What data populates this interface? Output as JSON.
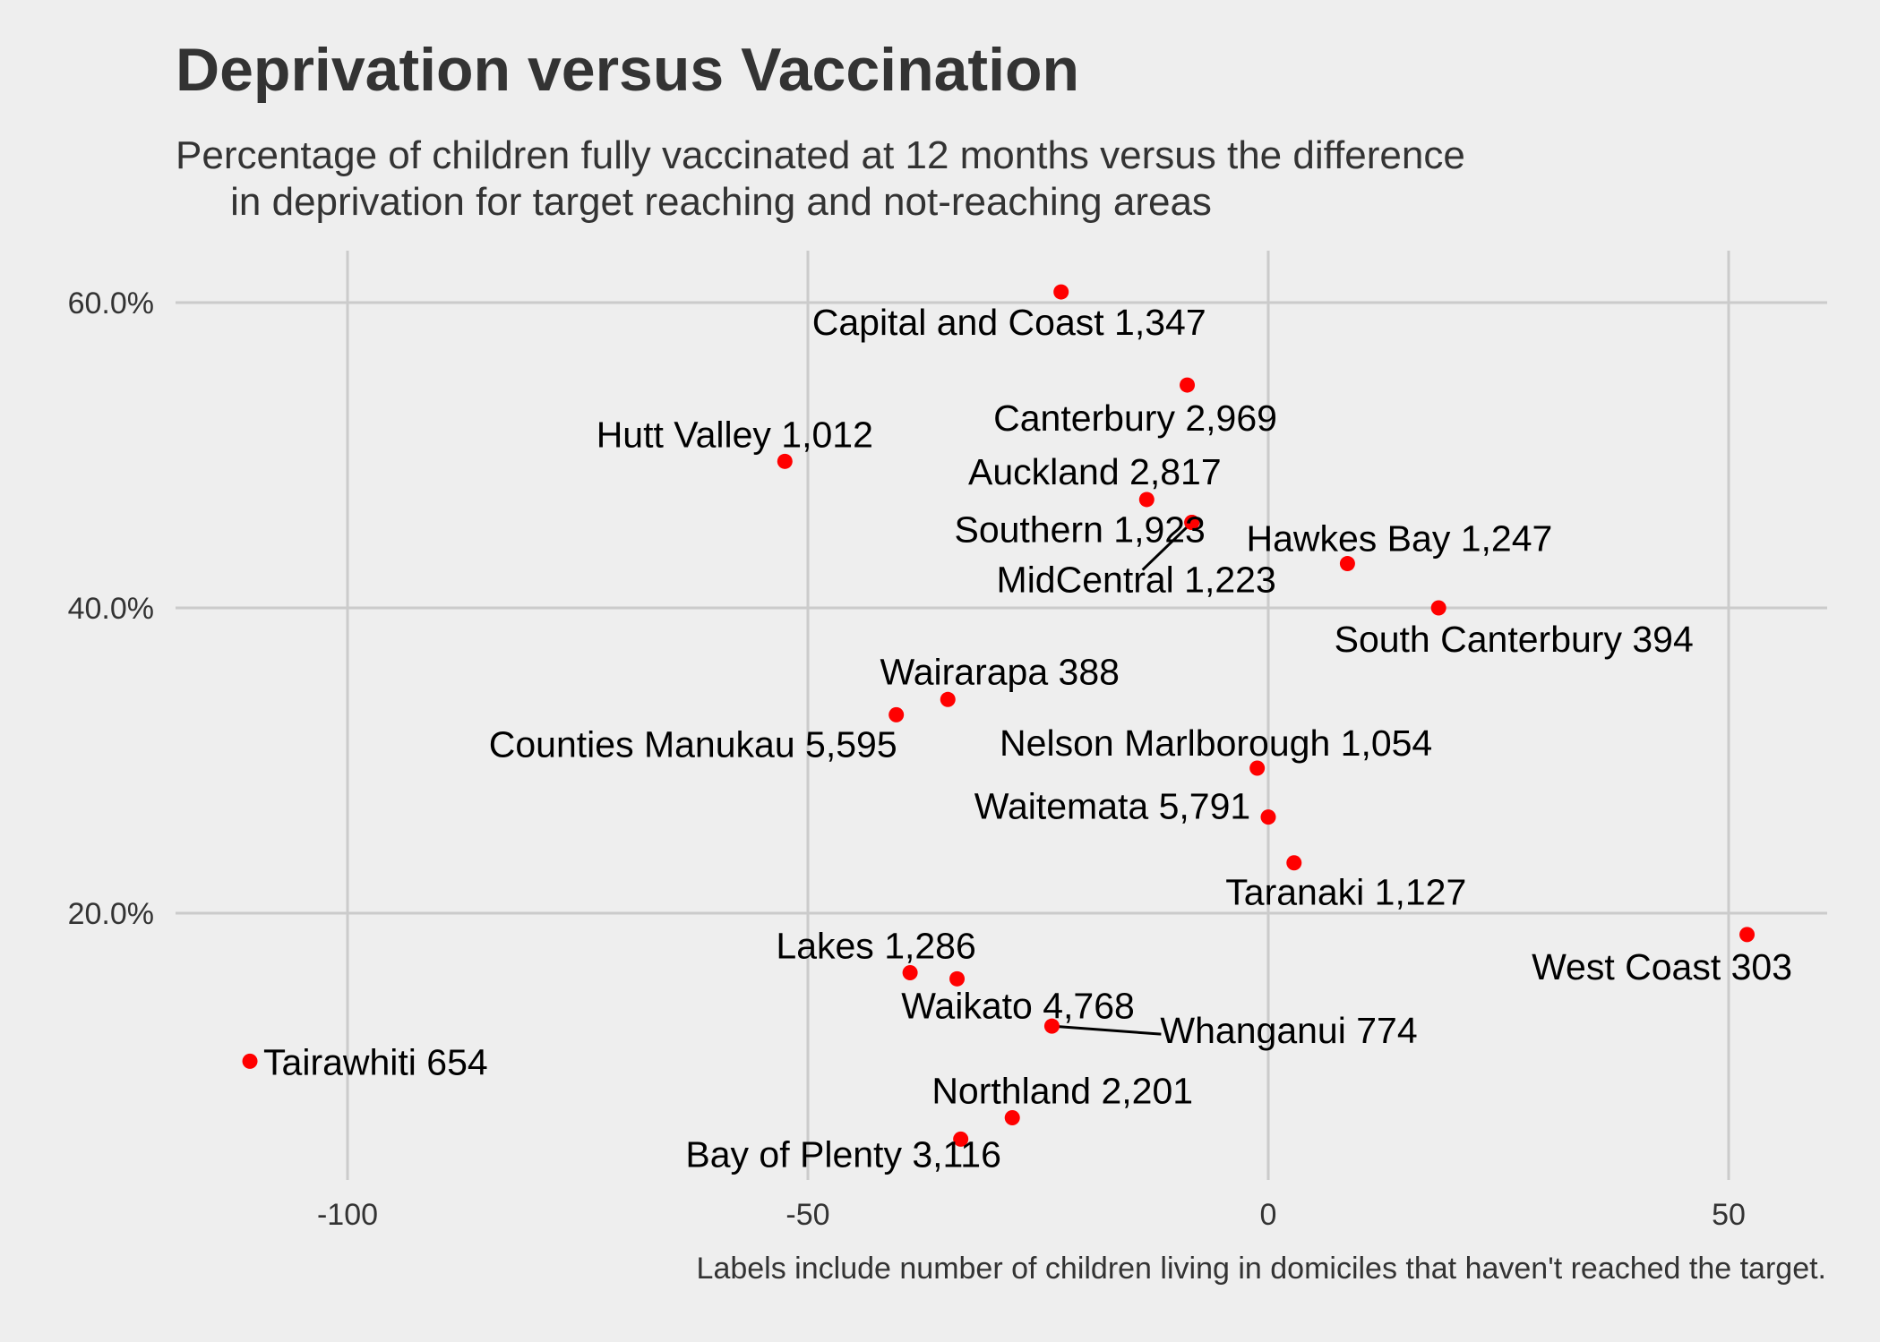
{
  "chart_data": {
    "type": "scatter",
    "title": "Deprivation versus Vaccination",
    "subtitle": "Percentage of children fully vaccinated at 12 months versus the difference\n     in deprivation for target reaching and not-reaching areas",
    "caption": "Labels include number of children living in domiciles that haven't reached the target.",
    "xlabel": "",
    "ylabel": "",
    "xlim": [
      -120,
      60
    ],
    "ylim": [
      3,
      64
    ],
    "x_ticks": [
      {
        "value": -100,
        "label": "-100"
      },
      {
        "value": -50,
        "label": "-50"
      },
      {
        "value": 0,
        "label": "0"
      },
      {
        "value": 50,
        "label": "50"
      }
    ],
    "y_ticks": [
      {
        "value": 20,
        "label": "20.0%"
      },
      {
        "value": 40,
        "label": "40.0%"
      },
      {
        "value": 60,
        "label": "60.0%"
      }
    ],
    "grid": true,
    "point_color": "#ff0000",
    "points": [
      {
        "label": "Capital and Coast 1,347",
        "x": -22.5,
        "y": 60.7
      },
      {
        "label": "Canterbury 2,969",
        "x": -8.8,
        "y": 54.6
      },
      {
        "label": "Hutt Valley 1,012",
        "x": -52.5,
        "y": 49.6
      },
      {
        "label": "Auckland 2,817",
        "x": -13.2,
        "y": 47.1
      },
      {
        "label": "Southern 1,923",
        "x": -8.3,
        "y": 45.6
      },
      {
        "label": "MidCentral 1,223",
        "x": -8.3,
        "y": 45.6
      },
      {
        "label": "Hawkes Bay 1,247",
        "x": 8.6,
        "y": 42.9
      },
      {
        "label": "South Canterbury 394",
        "x": 18.5,
        "y": 40.0
      },
      {
        "label": "Wairarapa 388",
        "x": -34.8,
        "y": 34.0
      },
      {
        "label": "Counties Manukau 5,595",
        "x": -40.4,
        "y": 33.0
      },
      {
        "label": "Nelson Marlborough 1,054",
        "x": -1.2,
        "y": 29.5
      },
      {
        "label": "Waitemata 5,791",
        "x": 0.0,
        "y": 26.3
      },
      {
        "label": "Taranaki 1,127",
        "x": 2.8,
        "y": 23.3
      },
      {
        "label": "West Coast 303",
        "x": 52.0,
        "y": 18.6
      },
      {
        "label": "Lakes 1,286",
        "x": -38.9,
        "y": 16.1
      },
      {
        "label": "Waikato 4,768",
        "x": -33.8,
        "y": 15.7
      },
      {
        "label": "Whanganui 774",
        "x": -23.5,
        "y": 12.6
      },
      {
        "label": "Tairawhiti 654",
        "x": -110.6,
        "y": 10.3
      },
      {
        "label": "Northland 2,201",
        "x": -27.8,
        "y": 6.6
      },
      {
        "label": "Bay of Plenty 3,116",
        "x": -33.4,
        "y": 5.2
      }
    ]
  }
}
